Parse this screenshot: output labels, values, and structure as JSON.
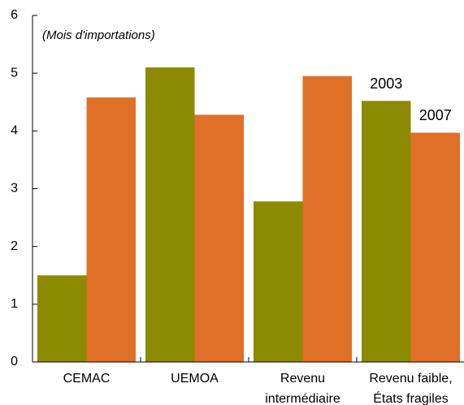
{
  "chart_data": {
    "type": "bar",
    "subtitle": "(Mois d'importations)",
    "categories": [
      [
        "CEMAC"
      ],
      [
        "UEMOA"
      ],
      [
        "Revenu",
        "intermédiaire"
      ],
      [
        "Revenu faible,",
        "États fragiles"
      ]
    ],
    "series": [
      {
        "name": "2003",
        "color": "#8b8a00",
        "values": [
          1.5,
          5.1,
          2.78,
          4.52
        ]
      },
      {
        "name": "2007",
        "color": "#e07028",
        "values": [
          4.58,
          4.28,
          4.95,
          3.97
        ]
      }
    ],
    "ylim": [
      0,
      6
    ],
    "yticks": [
      0,
      1,
      2,
      3,
      4,
      5,
      6
    ]
  }
}
